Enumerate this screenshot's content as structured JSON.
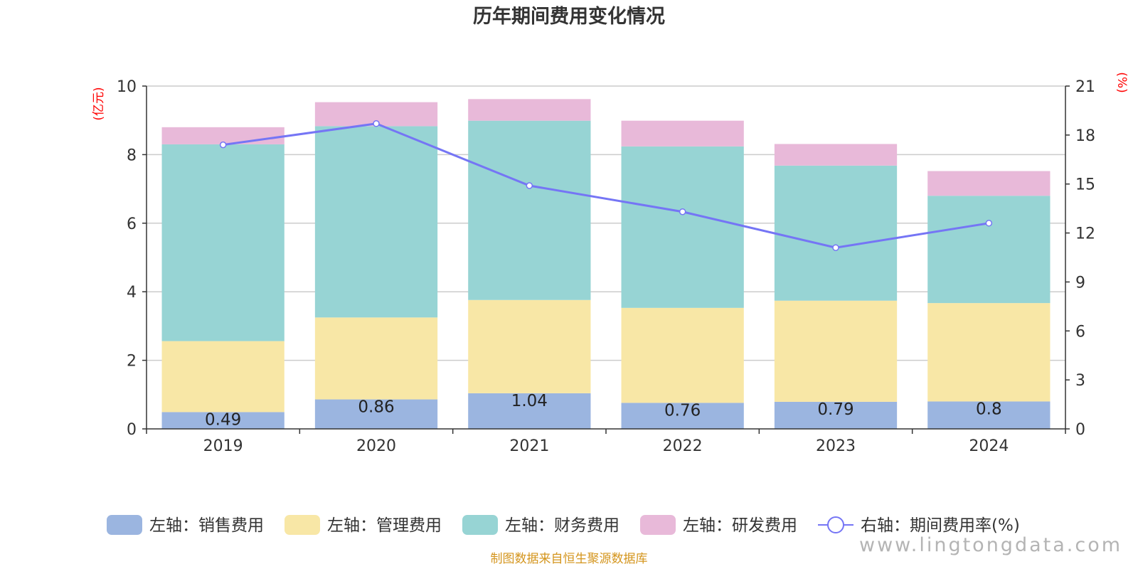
{
  "chart_data": {
    "type": "bar",
    "stacked": true,
    "title": "历年期间费用变化情况",
    "categories": [
      "2019",
      "2020",
      "2021",
      "2022",
      "2023",
      "2024"
    ],
    "series": [
      {
        "name": "左轴：销售费用",
        "axis": "left",
        "type": "bar",
        "color": "#9bb5e0",
        "values": [
          0.49,
          0.86,
          1.04,
          0.76,
          0.79,
          0.8
        ],
        "show_labels": true
      },
      {
        "name": "左轴：管理费用",
        "axis": "left",
        "type": "bar",
        "color": "#f8e7a6",
        "values": [
          2.07,
          2.39,
          2.72,
          2.77,
          2.95,
          2.87
        ],
        "show_labels": false
      },
      {
        "name": "左轴：财务费用",
        "axis": "left",
        "type": "bar",
        "color": "#97d4d4",
        "values": [
          5.74,
          5.58,
          5.23,
          4.71,
          3.94,
          3.13
        ],
        "show_labels": false
      },
      {
        "name": "左轴：研发费用",
        "axis": "left",
        "type": "bar",
        "color": "#e8b9d9",
        "values": [
          0.5,
          0.7,
          0.63,
          0.75,
          0.63,
          0.72
        ],
        "show_labels": false
      },
      {
        "name": "右轴：期间费用率(%)",
        "axis": "right",
        "type": "line",
        "color": "#7575f5",
        "values": [
          17.4,
          18.7,
          14.9,
          13.3,
          11.1,
          12.6
        ],
        "show_labels": false
      }
    ],
    "y_left": {
      "unit": "(亿元)",
      "ylim": [
        0,
        10
      ],
      "ticks": [
        "0",
        "2",
        "4",
        "6",
        "8",
        "10"
      ]
    },
    "y_right": {
      "unit": "(%)",
      "ylim": [
        0,
        21
      ],
      "ticks": [
        "0",
        "3",
        "6",
        "9",
        "12",
        "15",
        "18",
        "21"
      ]
    },
    "grid": true,
    "legend_position": "bottom"
  },
  "footer": {
    "source": "制图数据来自恒生聚源数据库",
    "watermark": "www.lingtongdata.com"
  }
}
